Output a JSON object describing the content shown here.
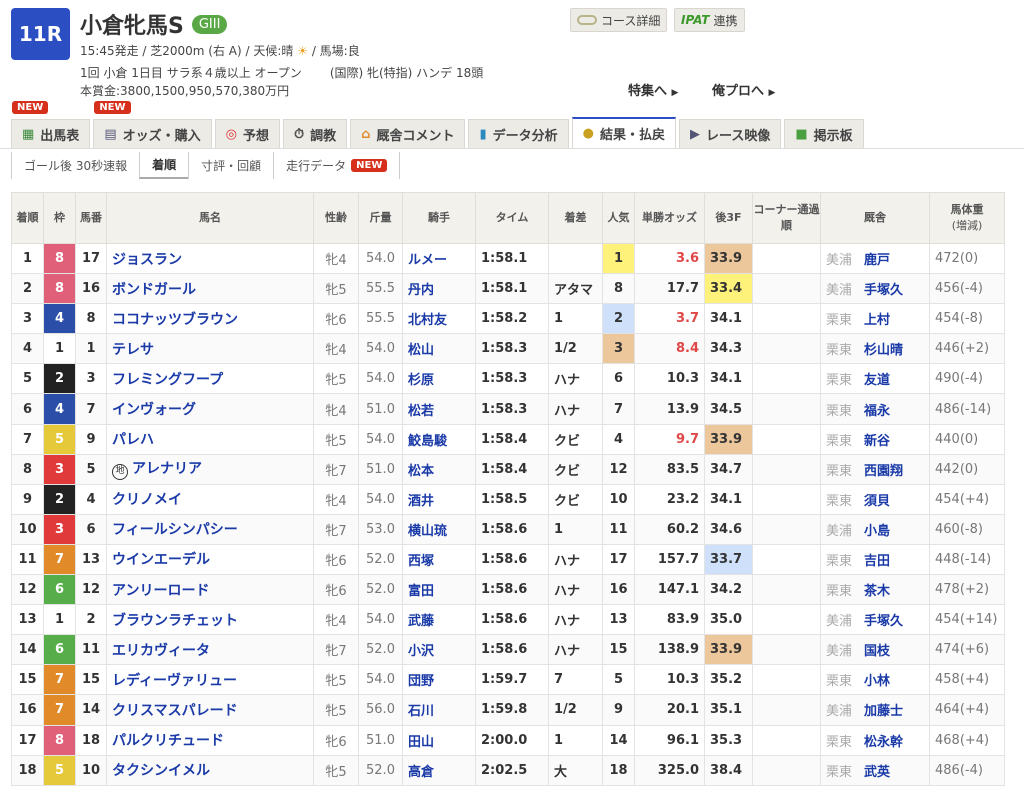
{
  "race": {
    "number": "11R",
    "name": "小倉牝馬S",
    "grade": "GIII",
    "line1": "15:45発走 / 芝2000m (右 A) / 天候:晴",
    "line1b": "/ 馬場:良",
    "line2": "1回 小倉 1日目 サラ系４歳以上 オープン",
    "line2b": "(国際) 牝(特指) ハンデ 18頭",
    "prize": "本賞金:3800,1500,950,570,380万円"
  },
  "buttons": {
    "course": "コース詳細",
    "ipat": "IPAT",
    "ipat_suffix": "連携"
  },
  "links": {
    "feature": "特集へ",
    "orepro": "俺プロへ"
  },
  "new_label": "NEW",
  "tabs": [
    {
      "label": "出馬表",
      "new": true
    },
    {
      "label": "オッズ・購入",
      "new": true
    },
    {
      "label": "予想"
    },
    {
      "label": "調教"
    },
    {
      "label": "厩舎コメント"
    },
    {
      "label": "データ分析"
    },
    {
      "label": "結果・払戻",
      "active": true
    },
    {
      "label": "レース映像"
    },
    {
      "label": "掲示板"
    }
  ],
  "subnav": [
    "ゴール後 30秒速報",
    "着順",
    "寸評・回顧",
    "走行データ"
  ],
  "headers": {
    "rank": "着順",
    "frame": "枠",
    "num": "馬番",
    "name": "馬名",
    "sa": "性齢",
    "weight": "斤量",
    "jockey": "騎手",
    "time": "タイム",
    "margin": "着差",
    "pop": "人気",
    "odds": "単勝オッズ",
    "last3f": "後3F",
    "corner": "コーナー通過順",
    "trainer": "厩舎",
    "body": "馬体重",
    "body_sub": "(増減)"
  },
  "frame_colors": {
    "1": "#ffffff",
    "2": "#222222",
    "3": "#e03a3a",
    "4": "#2b4fa8",
    "5": "#e6c93a",
    "6": "#56ad4a",
    "7": "#e08a2a",
    "8": "#e0607a"
  },
  "rows": [
    {
      "rank": "1",
      "frame": "8",
      "num": "17",
      "name": "ジョスラン",
      "sa": "牝4",
      "weight": "54.0",
      "jockey": "ルメー",
      "time": "1:58.1",
      "margin": "",
      "pop": "1",
      "odds": "3.6",
      "last3f": "33.9",
      "loc": "美浦",
      "trainer": "鹿戸",
      "body": "472(0)"
    },
    {
      "rank": "2",
      "frame": "8",
      "num": "16",
      "name": "ボンドガール",
      "sa": "牝5",
      "weight": "55.5",
      "jockey": "丹内",
      "time": "1:58.1",
      "margin": "アタマ",
      "pop": "8",
      "odds": "17.7",
      "last3f": "33.4",
      "loc": "美浦",
      "trainer": "手塚久",
      "body": "456(-4)"
    },
    {
      "rank": "3",
      "frame": "4",
      "num": "8",
      "name": "ココナッツブラウン",
      "sa": "牝6",
      "weight": "55.5",
      "jockey": "北村友",
      "time": "1:58.2",
      "margin": "1",
      "pop": "2",
      "odds": "3.7",
      "last3f": "34.1",
      "loc": "栗東",
      "trainer": "上村",
      "body": "454(-8)"
    },
    {
      "rank": "4",
      "frame": "1",
      "num": "1",
      "name": "テレサ",
      "sa": "牝4",
      "weight": "54.0",
      "jockey": "松山",
      "time": "1:58.3",
      "margin": "1/2",
      "pop": "3",
      "odds": "8.4",
      "last3f": "34.3",
      "loc": "栗東",
      "trainer": "杉山晴",
      "body": "446(+2)"
    },
    {
      "rank": "5",
      "frame": "2",
      "num": "3",
      "name": "フレミングフープ",
      "sa": "牝5",
      "weight": "54.0",
      "jockey": "杉原",
      "time": "1:58.3",
      "margin": "ハナ",
      "pop": "6",
      "odds": "10.3",
      "last3f": "34.1",
      "loc": "栗東",
      "trainer": "友道",
      "body": "490(-4)"
    },
    {
      "rank": "6",
      "frame": "4",
      "num": "7",
      "name": "インヴォーグ",
      "sa": "牝4",
      "weight": "51.0",
      "jockey": "松若",
      "time": "1:58.3",
      "margin": "ハナ",
      "pop": "7",
      "odds": "13.9",
      "last3f": "34.5",
      "loc": "栗東",
      "trainer": "福永",
      "body": "486(-14)"
    },
    {
      "rank": "7",
      "frame": "5",
      "num": "9",
      "name": "パレハ",
      "sa": "牝5",
      "weight": "54.0",
      "jockey": "鮫島駿",
      "time": "1:58.4",
      "margin": "クビ",
      "pop": "4",
      "odds": "9.7",
      "last3f": "33.9",
      "loc": "栗東",
      "trainer": "新谷",
      "body": "440(0)"
    },
    {
      "rank": "8",
      "frame": "3",
      "num": "5",
      "name": "アレナリア",
      "local_mark": "地",
      "sa": "牝7",
      "weight": "51.0",
      "jockey": "松本",
      "time": "1:58.4",
      "margin": "クビ",
      "pop": "12",
      "odds": "83.5",
      "last3f": "34.7",
      "loc": "栗東",
      "trainer": "西園翔",
      "body": "442(0)"
    },
    {
      "rank": "9",
      "frame": "2",
      "num": "4",
      "name": "クリノメイ",
      "sa": "牝4",
      "weight": "54.0",
      "jockey": "酒井",
      "time": "1:58.5",
      "margin": "クビ",
      "pop": "10",
      "odds": "23.2",
      "last3f": "34.1",
      "loc": "栗東",
      "trainer": "須貝",
      "body": "454(+4)"
    },
    {
      "rank": "10",
      "frame": "3",
      "num": "6",
      "name": "フィールシンパシー",
      "sa": "牝7",
      "weight": "53.0",
      "jockey": "横山琉",
      "time": "1:58.6",
      "margin": "1",
      "pop": "11",
      "odds": "60.2",
      "last3f": "34.6",
      "loc": "美浦",
      "trainer": "小島",
      "body": "460(-8)"
    },
    {
      "rank": "11",
      "frame": "7",
      "num": "13",
      "name": "ウインエーデル",
      "sa": "牝6",
      "weight": "52.0",
      "jockey": "西塚",
      "time": "1:58.6",
      "margin": "ハナ",
      "pop": "17",
      "odds": "157.7",
      "last3f": "33.7",
      "loc": "栗東",
      "trainer": "吉田",
      "body": "448(-14)"
    },
    {
      "rank": "12",
      "frame": "6",
      "num": "12",
      "name": "アンリーロード",
      "sa": "牝6",
      "weight": "52.0",
      "jockey": "富田",
      "time": "1:58.6",
      "margin": "ハナ",
      "pop": "16",
      "odds": "147.1",
      "last3f": "34.2",
      "loc": "栗東",
      "trainer": "茶木",
      "body": "478(+2)"
    },
    {
      "rank": "13",
      "frame": "1",
      "num": "2",
      "name": "ブラウンラチェット",
      "sa": "牝4",
      "weight": "54.0",
      "jockey": "武藤",
      "time": "1:58.6",
      "margin": "ハナ",
      "pop": "13",
      "odds": "83.9",
      "last3f": "35.0",
      "loc": "美浦",
      "trainer": "手塚久",
      "body": "454(+14)"
    },
    {
      "rank": "14",
      "frame": "6",
      "num": "11",
      "name": "エリカヴィータ",
      "sa": "牝7",
      "weight": "52.0",
      "jockey": "小沢",
      "time": "1:58.6",
      "margin": "ハナ",
      "pop": "15",
      "odds": "138.9",
      "last3f": "33.9",
      "loc": "美浦",
      "trainer": "国枝",
      "body": "474(+6)"
    },
    {
      "rank": "15",
      "frame": "7",
      "num": "15",
      "name": "レディーヴァリュー",
      "sa": "牝5",
      "weight": "54.0",
      "jockey": "団野",
      "time": "1:59.7",
      "margin": "7",
      "pop": "5",
      "odds": "10.3",
      "last3f": "35.2",
      "loc": "栗東",
      "trainer": "小林",
      "body": "458(+4)"
    },
    {
      "rank": "16",
      "frame": "7",
      "num": "14",
      "name": "クリスマスパレード",
      "sa": "牝5",
      "weight": "56.0",
      "jockey": "石川",
      "time": "1:59.8",
      "margin": "1/2",
      "pop": "9",
      "odds": "20.1",
      "last3f": "35.1",
      "loc": "美浦",
      "trainer": "加藤士",
      "body": "464(+4)"
    },
    {
      "rank": "17",
      "frame": "8",
      "num": "18",
      "name": "パルクリチュード",
      "sa": "牝6",
      "weight": "51.0",
      "jockey": "田山",
      "time": "2:00.0",
      "margin": "1",
      "pop": "14",
      "odds": "96.1",
      "last3f": "35.3",
      "loc": "栗東",
      "trainer": "松永幹",
      "body": "468(+4)"
    },
    {
      "rank": "18",
      "frame": "5",
      "num": "10",
      "name": "タクシンイメル",
      "sa": "牝5",
      "weight": "52.0",
      "jockey": "高倉",
      "time": "2:02.5",
      "margin": "大",
      "pop": "18",
      "odds": "325.0",
      "last3f": "38.4",
      "loc": "栗東",
      "trainer": "武英",
      "body": "486(-4)"
    }
  ]
}
